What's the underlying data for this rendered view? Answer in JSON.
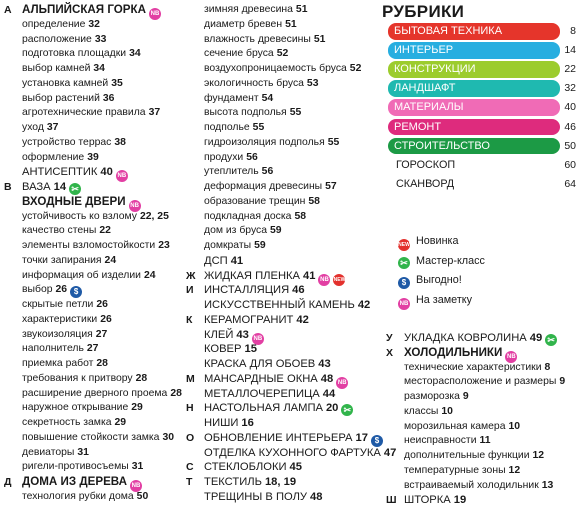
{
  "colA": [
    {
      "letter": "А",
      "text": "АЛЬПИЙСКАЯ ГОРКА",
      "page": "",
      "badges": [
        "nb"
      ],
      "style": "head"
    },
    {
      "text": "определение",
      "page": "32",
      "style": "sub"
    },
    {
      "text": "расположение",
      "page": "33",
      "style": "sub"
    },
    {
      "text": "подготовка площадки",
      "page": "34",
      "style": "sub"
    },
    {
      "text": "выбор камней",
      "page": "34",
      "style": "sub"
    },
    {
      "text": "установка камней",
      "page": "35",
      "style": "sub"
    },
    {
      "text": "выбор растений",
      "page": "36",
      "style": "sub"
    },
    {
      "text": "агротехнические правила",
      "page": "37",
      "style": "sub"
    },
    {
      "text": "уход",
      "page": "37",
      "style": "sub"
    },
    {
      "text": "устройство террас",
      "page": "38",
      "style": "sub"
    },
    {
      "text": "оформление",
      "page": "39",
      "style": "sub"
    },
    {
      "text": "АНТИСЕПТИК",
      "page": "40",
      "badges": [
        "nb"
      ],
      "style": "upper"
    },
    {
      "letter": "В",
      "text": "ВАЗА",
      "page": "14",
      "badges": [
        "mk"
      ],
      "style": "upper"
    },
    {
      "text": "ВХОДНЫЕ ДВЕРИ",
      "page": "",
      "badges": [
        "nb"
      ],
      "style": "head"
    },
    {
      "text": "устойчивость ко взлому",
      "page": "22, 25",
      "style": "sub"
    },
    {
      "text": "качество стены",
      "page": "22",
      "style": "sub"
    },
    {
      "text": "элементы взломостойкости",
      "page": "23",
      "style": "sub"
    },
    {
      "text": "точки запирания",
      "page": "24",
      "style": "sub"
    },
    {
      "text": "информация об изделии",
      "page": "24",
      "style": "sub"
    },
    {
      "text": "выбор",
      "page": "26",
      "badges": [
        "save"
      ],
      "style": "sub"
    },
    {
      "text": "скрытые петли",
      "page": "26",
      "style": "sub"
    },
    {
      "text": "характеристики",
      "page": "26",
      "style": "sub"
    },
    {
      "text": "звукоизоляция",
      "page": "27",
      "style": "sub"
    },
    {
      "text": "наполнитель",
      "page": "27",
      "style": "sub"
    },
    {
      "text": "приемка работ",
      "page": "28",
      "style": "sub"
    },
    {
      "text": "требования к притвору",
      "page": "28",
      "style": "sub"
    },
    {
      "text": "расширение дверного проема",
      "page": "28",
      "style": "sub"
    },
    {
      "text": "наружное открывание",
      "page": "29",
      "style": "sub"
    },
    {
      "text": "секретность замка",
      "page": "29",
      "style": "sub"
    },
    {
      "text": "повышение стойкости замка",
      "page": "30",
      "style": "sub"
    },
    {
      "text": "девиаторы",
      "page": "31",
      "style": "sub"
    },
    {
      "text": "ригели-противосъемы",
      "page": "31",
      "style": "sub"
    },
    {
      "letter": "Д",
      "text": "ДОМА ИЗ ДЕРЕВА",
      "page": "",
      "badges": [
        "nb"
      ],
      "style": "head"
    },
    {
      "text": "технология рубки дома",
      "page": "50",
      "style": "sub"
    }
  ],
  "colB": [
    {
      "text": "зимняя древесина",
      "page": "51",
      "style": "sub"
    },
    {
      "text": "диаметр бревен",
      "page": "51",
      "style": "sub"
    },
    {
      "text": "влажность древесины",
      "page": "51",
      "style": "sub"
    },
    {
      "text": "сечение бруса",
      "page": "52",
      "style": "sub"
    },
    {
      "text": "воздухопроницаемость бруса",
      "page": "52",
      "style": "sub"
    },
    {
      "text": "экологичность бруса",
      "page": "53",
      "style": "sub"
    },
    {
      "text": "фундамент",
      "page": "54",
      "style": "sub"
    },
    {
      "text": "высота подполья",
      "page": "55",
      "style": "sub"
    },
    {
      "text": "подполье",
      "page": "55",
      "style": "sub"
    },
    {
      "text": "гидроизоляция подполья",
      "page": "55",
      "style": "sub"
    },
    {
      "text": "продухи",
      "page": "56",
      "style": "sub"
    },
    {
      "text": "утеплитель",
      "page": "56",
      "style": "sub"
    },
    {
      "text": "деформация древесины",
      "page": "57",
      "style": "sub"
    },
    {
      "text": "образование трещин",
      "page": "58",
      "style": "sub"
    },
    {
      "text": "подкладная доска",
      "page": "58",
      "style": "sub"
    },
    {
      "text": "дом из бруса",
      "page": "59",
      "style": "sub"
    },
    {
      "text": "домкраты",
      "page": "59",
      "style": "sub"
    },
    {
      "text": "ДСП",
      "page": "41",
      "style": "upper"
    },
    {
      "letter": "Ж",
      "text": "ЖИДКАЯ ПЛЕНКА",
      "page": "41",
      "badges": [
        "nb",
        "new"
      ],
      "style": "upper"
    },
    {
      "letter": "И",
      "text": "ИНСТАЛЛЯЦИЯ",
      "page": "46",
      "style": "upper"
    },
    {
      "text": "ИСКУССТВЕННЫЙ КАМЕНЬ",
      "page": "42",
      "style": "upper"
    },
    {
      "letter": "К",
      "text": "КЕРАМОГРАНИТ",
      "page": "42",
      "style": "upper"
    },
    {
      "text": "КЛЕЙ",
      "page": "43",
      "badges": [
        "nb"
      ],
      "style": "upper"
    },
    {
      "text": "КОВЕР",
      "page": "15",
      "style": "upper"
    },
    {
      "text": "КРАСКА ДЛЯ ОБОЕВ",
      "page": "43",
      "style": "upper"
    },
    {
      "letter": "М",
      "text": "МАНСАРДНЫЕ ОКНА",
      "page": "48",
      "badges": [
        "nb"
      ],
      "style": "upper"
    },
    {
      "text": "МЕТАЛЛОЧЕРЕПИЦА",
      "page": "44",
      "style": "upper"
    },
    {
      "letter": "Н",
      "text": "НАСТОЛЬНАЯ ЛАМПА",
      "page": "20",
      "badges": [
        "mk"
      ],
      "style": "upper"
    },
    {
      "text": "НИШИ",
      "page": "16",
      "style": "upper"
    },
    {
      "letter": "О",
      "text": "ОБНОВЛЕНИЕ ИНТЕРЬЕРА",
      "page": "17",
      "badges": [
        "save"
      ],
      "style": "upper"
    },
    {
      "text": "ОТДЕЛКА КУХОННОГО ФАРТУКА",
      "page": "47",
      "style": "upper"
    },
    {
      "letter": "С",
      "text": "СТЕКЛОБЛОКИ",
      "page": "45",
      "style": "upper"
    },
    {
      "letter": "Т",
      "text": "ТЕКСТИЛЬ",
      "page": "18, 19",
      "style": "upper"
    },
    {
      "text": "ТРЕЩИНЫ В ПОЛУ",
      "page": "48",
      "style": "upper"
    }
  ],
  "colC": [
    {
      "letter": "У",
      "text": "УКЛАДКА КОВРОЛИНА",
      "page": "49",
      "badges": [
        "mk"
      ],
      "style": "upper"
    },
    {
      "letter": "Х",
      "text": "ХОЛОДИЛЬНИКИ",
      "page": "",
      "badges": [
        "nb"
      ],
      "style": "head"
    },
    {
      "text": "технические характеристики",
      "page": "8",
      "style": "sub"
    },
    {
      "text": "месторасположение и размеры",
      "page": "9",
      "style": "sub"
    },
    {
      "text": "разморозка",
      "page": "9",
      "style": "sub"
    },
    {
      "text": "классы",
      "page": "10",
      "style": "sub"
    },
    {
      "text": "морозильная камера",
      "page": "10",
      "style": "sub"
    },
    {
      "text": "неисправности",
      "page": "11",
      "style": "sub"
    },
    {
      "text": "дополнительные функции",
      "page": "12",
      "style": "sub"
    },
    {
      "text": "температурные зоны",
      "page": "12",
      "style": "sub"
    },
    {
      "text": "встраиваемый холодильник",
      "page": "13",
      "style": "sub"
    },
    {
      "letter": "Ш",
      "text": "ШТОРКА",
      "page": "19",
      "style": "upper"
    }
  ],
  "rubrics": {
    "title": "РУБРИКИ",
    "items": [
      {
        "label": "БЫТОВАЯ ТЕХНИКА",
        "page": "8",
        "color": "#e5352b"
      },
      {
        "label": "ИНТЕРЬЕР",
        "page": "14",
        "color": "#27aee0"
      },
      {
        "label": "КОНСТРУКЦИИ",
        "page": "22",
        "color": "#9ccc2d"
      },
      {
        "label": "ЛАНДШАФТ",
        "page": "32",
        "color": "#1fb9b0"
      },
      {
        "label": "МАТЕРИАЛЫ",
        "page": "40",
        "color": "#f06bb6"
      },
      {
        "label": "РЕМОНТ",
        "page": "46",
        "color": "#de2b7d"
      },
      {
        "label": "СТРОИТЕЛЬСТВО",
        "page": "50",
        "color": "#1c9a45"
      },
      {
        "label": "ГОРОСКОП",
        "page": "60",
        "color": ""
      },
      {
        "label": "СКАНВОРД",
        "page": "64",
        "color": ""
      }
    ]
  },
  "legend": [
    {
      "badge": "new",
      "label": "Новинка"
    },
    {
      "badge": "mk",
      "label": "Мастер-класс"
    },
    {
      "badge": "save",
      "label": "Выгодно!"
    },
    {
      "badge": "nb",
      "label": "На заметку"
    }
  ],
  "badges": {
    "nb": {
      "text": "NB",
      "color": "#e23fa3",
      "icon": "note-badge-icon"
    },
    "new": {
      "text": "NEW",
      "color": "#e3312d",
      "icon": "new-badge-icon"
    },
    "mk": {
      "text": "✂",
      "color": "#31b44b",
      "icon": "master-class-icon"
    },
    "save": {
      "text": "$",
      "color": "#1f5aa6",
      "icon": "dollar-badge-icon"
    }
  }
}
